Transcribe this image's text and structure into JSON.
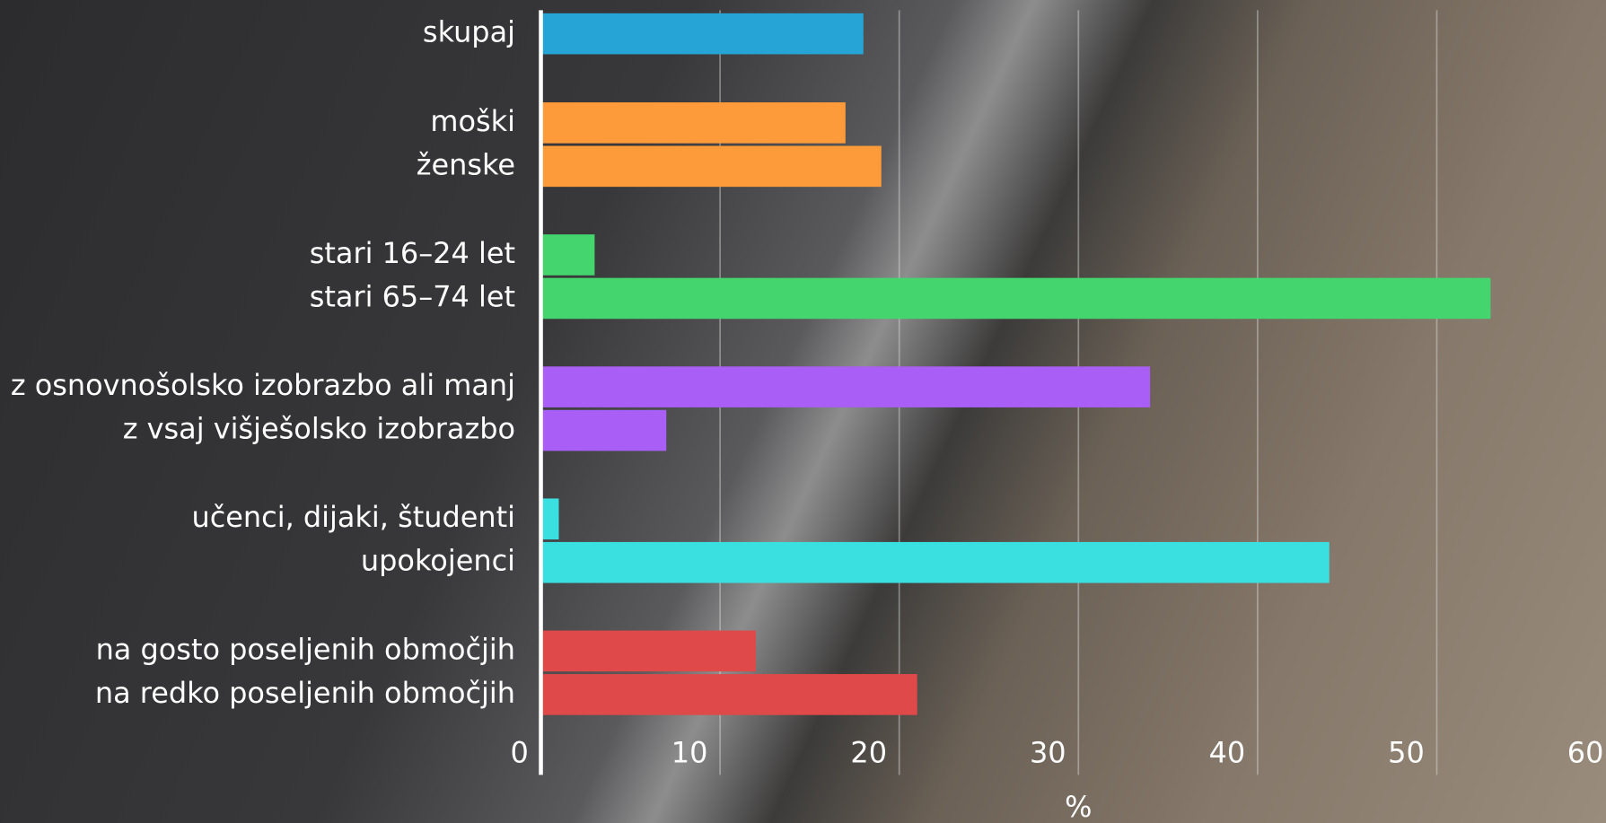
{
  "chart_data": {
    "type": "bar",
    "orientation": "horizontal",
    "x_label": "%",
    "xlim": [
      0,
      60
    ],
    "xticks": [
      0,
      10,
      20,
      30,
      40,
      50,
      60
    ],
    "grid": true,
    "groups": [
      {
        "color": "#27a4d6",
        "categories": [
          "skupaj"
        ],
        "values": [
          18
        ]
      },
      {
        "color": "#fd9a3a",
        "categories": [
          "moški",
          "ženske"
        ],
        "values": [
          17,
          19
        ]
      },
      {
        "color": "#45d56e",
        "categories": [
          "stari 16–24 let",
          "stari 65–74 let"
        ],
        "values": [
          3,
          53
        ]
      },
      {
        "color": "#a95ef5",
        "categories": [
          "z osnovnošolsko izobrazbo ali manj",
          "z vsaj višješolsko izobrazbo"
        ],
        "values": [
          34,
          7
        ]
      },
      {
        "color": "#3ae0e0",
        "categories": [
          "učenci, dijaki, študenti",
          "upokojenci"
        ],
        "values": [
          1,
          44
        ]
      },
      {
        "color": "#e0494a",
        "categories": [
          "na gosto poseljenih območjih",
          "na redko poseljenih območjih"
        ],
        "values": [
          12,
          21
        ]
      }
    ]
  }
}
